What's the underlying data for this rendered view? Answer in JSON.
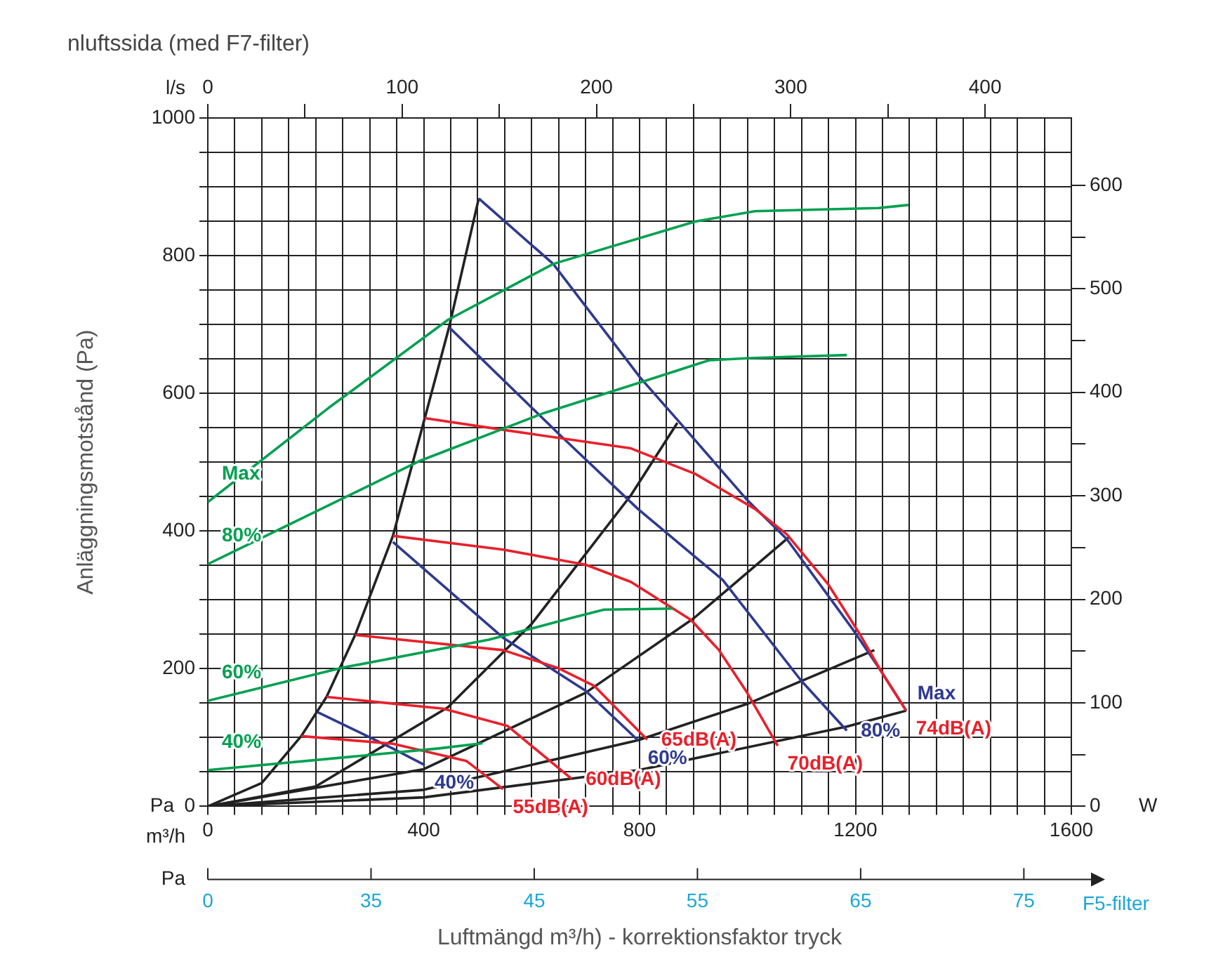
{
  "chart_data": {
    "type": "line",
    "title": "nluftssida (med F7-filter)",
    "xlabel": "Luftmängd m³/h) - korrektionsfaktor tryck",
    "ylabel": "Anläggningsmotstånd (Pa)",
    "x2label": "l/s",
    "y2label": "W",
    "annotations": [
      "m³/h",
      "Pa",
      "Pa",
      "F5-filter",
      "0",
      "35",
      "45",
      "55",
      "65",
      "75"
    ],
    "xlim": [
      0,
      1600
    ],
    "xticks": [
      0,
      {
        "value": 50,
        "label": null
      },
      {
        "value": 100,
        "label": null
      },
      {
        "value": 150,
        "label": null
      },
      {
        "value": 200,
        "label": null
      },
      {
        "value": 250,
        "label": null
      },
      {
        "value": 300,
        "label": null
      },
      {
        "value": 350,
        "label": null
      },
      400,
      {
        "value": 450,
        "label": null
      },
      {
        "value": 500,
        "label": null
      },
      {
        "value": 550,
        "label": null
      },
      {
        "value": 600,
        "label": null
      },
      {
        "value": 650,
        "label": null
      },
      {
        "value": 700,
        "label": null
      },
      {
        "value": 750,
        "label": null
      },
      800,
      {
        "value": 850,
        "label": null
      },
      {
        "value": 900,
        "label": null
      },
      {
        "value": 950,
        "label": null
      },
      {
        "value": 1000,
        "label": null
      },
      {
        "value": 1050,
        "label": null
      },
      {
        "value": 1100,
        "label": null
      },
      {
        "value": 1150,
        "label": null
      },
      1200,
      {
        "value": 1250,
        "label": null
      },
      {
        "value": 1300,
        "label": null
      },
      {
        "value": 1350,
        "label": null
      },
      {
        "value": 1400,
        "label": null
      },
      {
        "value": 1450,
        "label": null
      },
      {
        "value": 1500,
        "label": null
      },
      {
        "value": 1550,
        "label": null
      },
      1600
    ],
    "ylim": [
      0,
      1000
    ],
    "yticks": [
      0,
      {
        "value": 50,
        "label": null
      },
      {
        "value": 100,
        "label": null
      },
      {
        "value": 150,
        "label": null
      },
      200,
      {
        "value": 250,
        "label": null
      },
      {
        "value": 300,
        "label": null
      },
      {
        "value": 350,
        "label": null
      },
      400,
      {
        "value": 450,
        "label": null
      },
      {
        "value": 500,
        "label": null
      },
      {
        "value": 550,
        "label": null
      },
      600,
      {
        "value": 650,
        "label": null
      },
      {
        "value": 700,
        "label": null
      },
      {
        "value": 750,
        "label": null
      },
      800,
      {
        "value": 850,
        "label": null
      },
      {
        "value": 900,
        "label": null
      },
      {
        "value": 950,
        "label": null
      },
      1000
    ],
    "y2lim": [
      0,
      665
    ],
    "y2ticks": [
      0,
      {
        "value": 50,
        "label": null
      },
      100,
      {
        "value": 150,
        "label": null
      },
      200,
      {
        "value": 250,
        "label": null
      },
      300,
      {
        "value": 350,
        "label": null
      },
      400,
      {
        "value": 450,
        "label": null
      },
      500,
      {
        "value": 550,
        "label": null
      },
      600
    ],
    "x2lim": [
      0,
      444.4
    ],
    "x2ticks": [
      0,
      {
        "value": 50,
        "label": null
      },
      100,
      {
        "value": 150,
        "label": null
      },
      200,
      {
        "value": 250,
        "label": null
      },
      300,
      {
        "value": 350,
        "label": null
      },
      400
    ],
    "grid": true,
    "legend": false,
    "marker": "none",
    "line_style": "solid",
    "series": [
      {
        "name": "Max",
        "color": "#00a050",
        "axis": "y2",
        "x": [
          0,
          224,
          445,
          640,
          903,
          1014,
          1243,
          1298
        ],
        "values": [
          294,
          385,
          470,
          524,
          565,
          575,
          578,
          581
        ]
      },
      {
        "name": "80%",
        "color": "#00a050",
        "axis": "y2",
        "x": [
          0,
          394,
          623,
          810,
          929,
          1005,
          1184
        ],
        "values": [
          234,
          334,
          380,
          411,
          431,
          433,
          436
        ]
      },
      {
        "name": "60%",
        "color": "#00a050",
        "axis": "y2",
        "x": [
          0,
          250,
          521,
          674,
          734,
          861
        ],
        "values": [
          102,
          134,
          161,
          182,
          190,
          191
        ]
      },
      {
        "name": "40%",
        "color": "#00a050",
        "axis": "y2",
        "x": [
          0,
          267,
          428,
          509
        ],
        "values": [
          35,
          48,
          56,
          61
        ]
      },
      {
        "name": "55dB(A)",
        "color": "#e8202a",
        "x": [
          173,
          343,
          479,
          547
        ],
        "values": [
          102,
          91,
          66,
          25
        ]
      },
      {
        "name": "60dB(A)",
        "color": "#e8202a",
        "x": [
          220,
          436,
          555,
          674
        ],
        "values": [
          159,
          142,
          117,
          40
        ]
      },
      {
        "name": "65dB(A)",
        "color": "#e8202a",
        "x": [
          273,
          547,
          649,
          716,
          814
        ],
        "values": [
          249,
          227,
          201,
          175,
          97
        ]
      },
      {
        "name": "70dB(A)",
        "color": "#e8202a",
        "x": [
          343,
          547,
          700,
          784,
          895,
          946,
          997,
          1056
        ],
        "values": [
          393,
          373,
          351,
          326,
          271,
          228,
          168,
          88
        ]
      },
      {
        "name": "74dB(A)",
        "color": "#e8202a",
        "x": [
          402,
          547,
          784,
          903,
          1014,
          1073,
          1150,
          1209,
          1247,
          1294
        ],
        "values": [
          564,
          547,
          520,
          483,
          432,
          395,
          322,
          249,
          197,
          139
        ]
      },
      {
        "name": "Max",
        "color": "#2e3a8f",
        "x": [
          502,
          640,
          801,
          874,
          997,
          1073,
          1196,
          1247,
          1294
        ],
        "values": [
          883,
          788,
          623,
          558,
          447,
          388,
          256,
          197,
          139
        ]
      },
      {
        "name": "80%",
        "color": "#2e3a8f",
        "x": [
          447,
          649,
          797,
          954,
          1099,
          1184
        ],
        "values": [
          696,
          542,
          432,
          329,
          183,
          110
        ]
      },
      {
        "name": "60%",
        "color": "#2e3a8f",
        "x": [
          343,
          547,
          700,
          797
        ],
        "values": [
          384,
          245,
          168,
          96
        ]
      },
      {
        "name": "40%",
        "color": "#2e3a8f",
        "x": [
          203,
          343,
          402
        ],
        "values": [
          137,
          84,
          60
        ]
      },
      {
        "color": "#222222",
        "x": [
          0,
          100,
          173,
          220,
          273,
          343,
          402,
          447,
          502
        ],
        "values": [
          0,
          34,
          102,
          159,
          249,
          393,
          564,
          696,
          883
        ]
      },
      {
        "color": "#222222",
        "x": [
          0,
          200,
          445,
          600,
          784,
          870
        ],
        "values": [
          0,
          29,
          144,
          265,
          452,
          557
        ]
      },
      {
        "color": "#222222",
        "x": [
          0,
          400,
          700,
          900,
          1078
        ],
        "values": [
          0,
          54,
          165,
          273,
          392
        ]
      },
      {
        "color": "#222222",
        "x": [
          0,
          400,
          797,
          1000,
          1235
        ],
        "values": [
          0,
          24,
          96,
          149,
          227
        ]
      },
      {
        "color": "#222222",
        "x": [
          0,
          400,
          800,
          1184,
          1294
        ],
        "values": [
          0,
          13,
          53,
          116,
          139
        ]
      }
    ]
  }
}
